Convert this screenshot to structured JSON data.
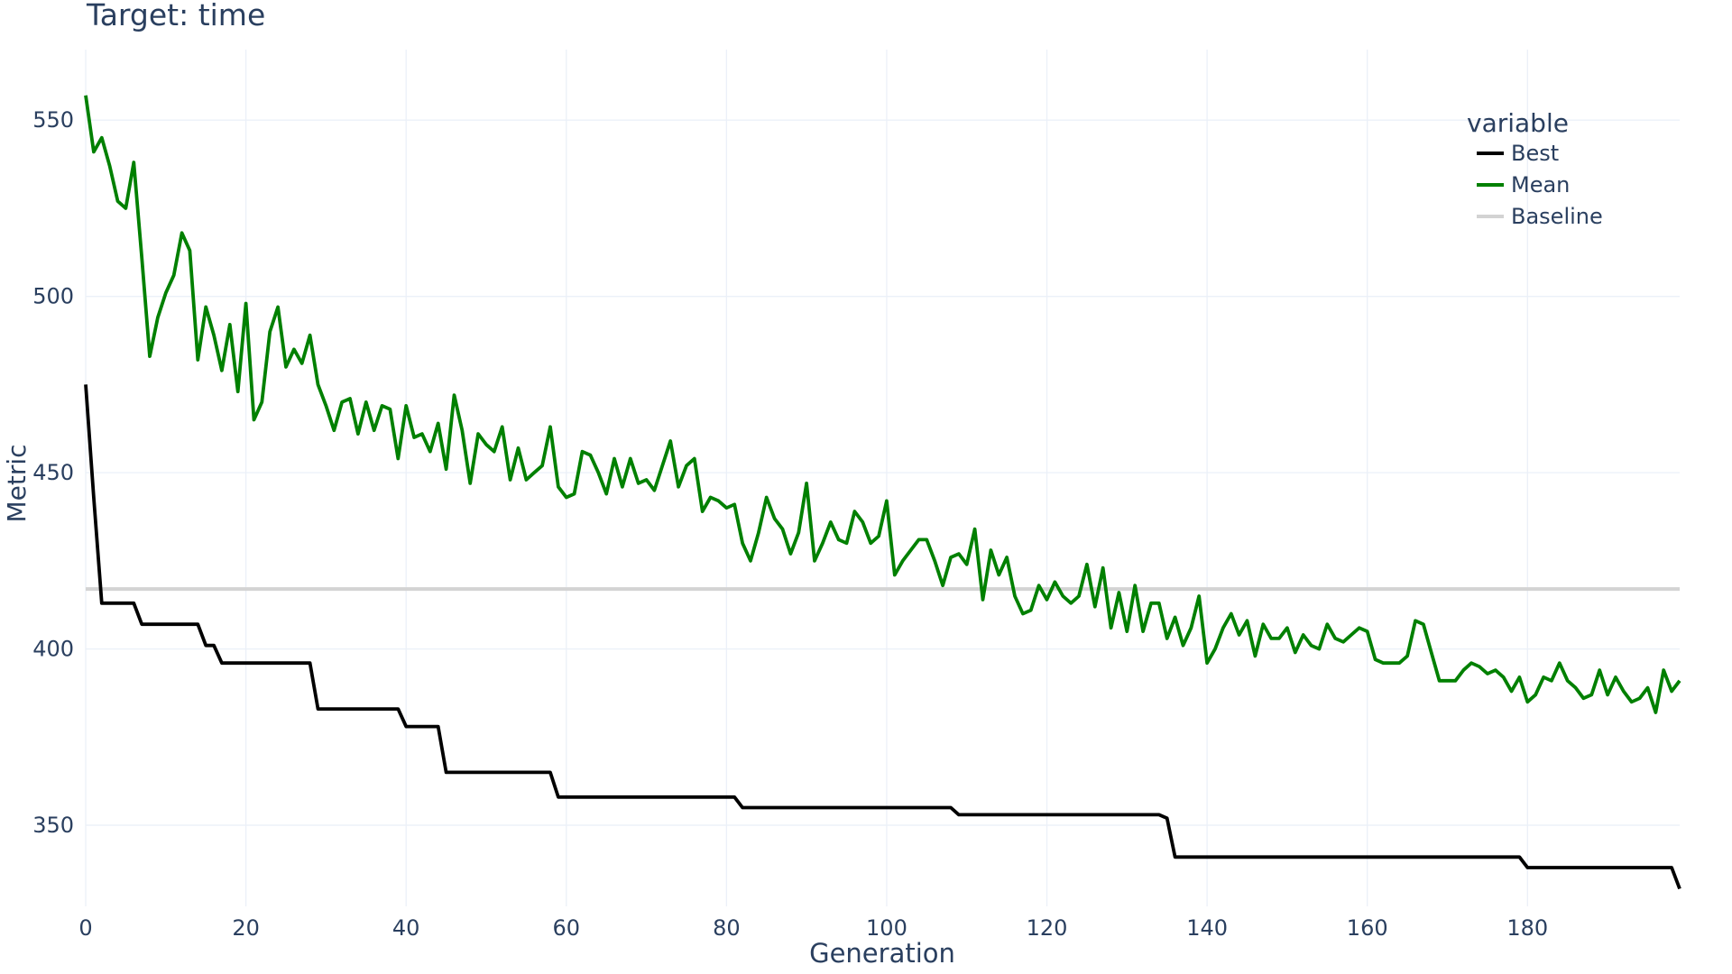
{
  "chart_data": {
    "type": "line",
    "title": "Target: time",
    "xlabel": "Generation",
    "ylabel": "Metric",
    "xlim": [
      0,
      199
    ],
    "ylim": [
      327,
      570
    ],
    "x_ticks": [
      0,
      20,
      40,
      60,
      80,
      100,
      120,
      140,
      160,
      180
    ],
    "y_ticks": [
      350,
      400,
      450,
      500,
      550
    ],
    "grid": true,
    "legend": {
      "title": "variable",
      "position": "top-right",
      "entries": [
        "Best",
        "Mean",
        "Baseline"
      ]
    },
    "colors": {
      "Best": "#000000",
      "Mean": "#008000",
      "Baseline": "#d3d3d3",
      "grid": "#ebf0f8",
      "text": "#2a3f5f"
    },
    "series": [
      {
        "name": "Best",
        "x": [
          0,
          1,
          2,
          6,
          7,
          14,
          15,
          16,
          17,
          28,
          29,
          39,
          40,
          44,
          45,
          58,
          59,
          81,
          82,
          108,
          109,
          134,
          135,
          136,
          179,
          180,
          198,
          199
        ],
        "values": [
          475,
          443,
          413,
          413,
          407,
          407,
          401,
          401,
          396,
          396,
          383,
          383,
          378,
          378,
          365,
          365,
          358,
          358,
          355,
          355,
          353,
          353,
          352,
          341,
          341,
          338,
          338,
          332
        ]
      },
      {
        "name": "Mean",
        "x": [
          0,
          1,
          2,
          3,
          4,
          5,
          6,
          7,
          8,
          9,
          10,
          11,
          12,
          13,
          14,
          15,
          16,
          17,
          18,
          19,
          20,
          21,
          22,
          23,
          24,
          25,
          26,
          27,
          28,
          29,
          30,
          31,
          32,
          33,
          34,
          35,
          36,
          37,
          38,
          39,
          40,
          41,
          42,
          43,
          44,
          45,
          46,
          47,
          48,
          49,
          50,
          51,
          52,
          53,
          54,
          55,
          56,
          57,
          58,
          59,
          60,
          61,
          62,
          63,
          64,
          65,
          66,
          67,
          68,
          69,
          70,
          71,
          72,
          73,
          74,
          75,
          76,
          77,
          78,
          79,
          80,
          81,
          82,
          83,
          84,
          85,
          86,
          87,
          88,
          89,
          90,
          91,
          92,
          93,
          94,
          95,
          96,
          97,
          98,
          99,
          100,
          101,
          102,
          103,
          104,
          105,
          106,
          107,
          108,
          109,
          110,
          111,
          112,
          113,
          114,
          115,
          116,
          117,
          118,
          119,
          120,
          121,
          122,
          123,
          124,
          125,
          126,
          127,
          128,
          129,
          130,
          131,
          132,
          133,
          134,
          135,
          136,
          137,
          138,
          139,
          140,
          141,
          142,
          143,
          144,
          145,
          146,
          147,
          148,
          149,
          150,
          151,
          152,
          153,
          154,
          155,
          156,
          157,
          158,
          159,
          160,
          161,
          162,
          163,
          164,
          165,
          166,
          167,
          168,
          169,
          170,
          171,
          172,
          173,
          174,
          175,
          176,
          177,
          178,
          179,
          180,
          181,
          182,
          183,
          184,
          185,
          186,
          187,
          188,
          189,
          190,
          191,
          192,
          193,
          194,
          195,
          196,
          197,
          198,
          199
        ],
        "values": [
          557,
          541,
          545,
          537,
          527,
          525,
          538,
          511,
          483,
          494,
          501,
          506,
          518,
          513,
          482,
          497,
          489,
          479,
          492,
          473,
          498,
          465,
          470,
          490,
          497,
          480,
          485,
          481,
          489,
          475,
          469,
          462,
          470,
          471,
          461,
          470,
          462,
          469,
          468,
          454,
          469,
          460,
          461,
          456,
          464,
          451,
          472,
          462,
          447,
          461,
          458,
          456,
          463,
          448,
          457,
          448,
          450,
          452,
          463,
          446,
          443,
          444,
          456,
          455,
          450,
          444,
          454,
          446,
          454,
          447,
          448,
          445,
          452,
          459,
          446,
          452,
          454,
          439,
          443,
          442,
          440,
          441,
          430,
          425,
          433,
          443,
          437,
          434,
          427,
          433,
          447,
          425,
          430,
          436,
          431,
          430,
          439,
          436,
          430,
          432,
          442,
          421,
          425,
          428,
          431,
          431,
          425,
          418,
          426,
          427,
          424,
          434,
          414,
          428,
          421,
          426,
          415,
          410,
          411,
          418,
          414,
          419,
          415,
          413,
          415,
          424,
          412,
          423,
          406,
          416,
          405,
          418,
          405,
          413,
          413,
          403,
          409,
          401,
          406,
          415,
          396,
          400,
          406,
          410,
          404,
          408,
          398,
          407,
          403,
          403,
          406,
          399,
          404,
          401,
          400,
          407,
          403,
          402,
          404,
          406,
          405,
          397,
          396,
          396,
          396,
          398,
          408,
          407,
          399,
          391,
          391,
          391,
          394,
          396,
          395,
          393,
          394,
          392,
          388,
          392,
          385,
          387,
          392,
          391,
          396,
          391,
          389,
          386,
          387,
          394,
          387,
          392,
          388,
          385,
          386,
          389,
          382,
          394,
          388,
          391
        ]
      },
      {
        "name": "Baseline",
        "x": [
          0,
          199
        ],
        "values": [
          417,
          417
        ]
      }
    ]
  }
}
